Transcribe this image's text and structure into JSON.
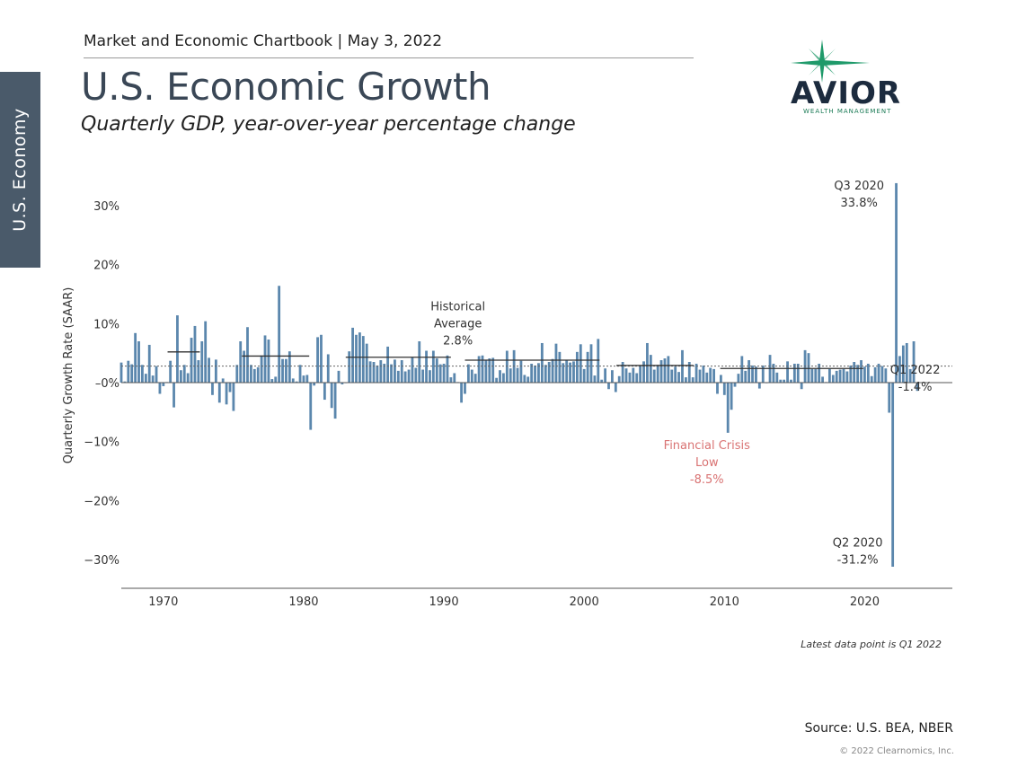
{
  "side_tab": "U.S. Economy",
  "header": "Market and Economic Chartbook | May 3, 2022",
  "title": "U.S. Economic Growth",
  "subtitle": "Quarterly GDP, year-over-year percentage change",
  "logo": {
    "word": "AVIOR",
    "sub": "WEALTH MANAGEMENT"
  },
  "source": "Source: U.S. BEA, NBER",
  "copyright": "© 2022 Clearnomics, Inc.",
  "colors": {
    "bar": "#5b87ad",
    "crisis": "#d97373",
    "ink": "#333333",
    "tab": "#4a5a6a",
    "logo_star": "#1f9a6a"
  },
  "chart_data": {
    "type": "bar",
    "ylabel": "Quarterly Growth Rate (SAAR)",
    "ylim": [
      -35,
      35
    ],
    "yticks": [
      {
        "v": 30,
        "label": "30%"
      },
      {
        "v": 20,
        "label": "20%"
      },
      {
        "v": 10,
        "label": "10%"
      },
      {
        "v": 0,
        "label": "–0%"
      },
      {
        "v": -10,
        "label": "−10%"
      },
      {
        "v": -20,
        "label": "−20%"
      },
      {
        "v": -30,
        "label": "−30%"
      }
    ],
    "xlim": [
      1967.0,
      2026.25
    ],
    "xticks": [
      {
        "v": 1970,
        "label": "1970"
      },
      {
        "v": 1980,
        "label": "1980"
      },
      {
        "v": 1990,
        "label": "1990"
      },
      {
        "v": 2000,
        "label": "2000"
      },
      {
        "v": 2010,
        "label": "2010"
      },
      {
        "v": 2020,
        "label": "2020"
      }
    ],
    "start": 1967.0,
    "step": 0.25,
    "values": [
      3.4,
      0.2,
      3.7,
      3.1,
      8.4,
      7.0,
      3.0,
      1.5,
      6.4,
      1.2,
      2.8,
      -1.9,
      -0.6,
      0.1,
      3.7,
      -4.2,
      11.4,
      2.1,
      3.0,
      1.6,
      7.6,
      9.6,
      3.8,
      7.0,
      10.4,
      4.2,
      -2.1,
      3.9,
      -3.4,
      0.7,
      -3.7,
      -1.6,
      -4.8,
      3.0,
      7.0,
      5.4,
      9.4,
      3.0,
      2.3,
      2.6,
      4.6,
      8.0,
      7.3,
      0.6,
      1.0,
      16.4,
      4.0,
      4.0,
      5.3,
      0.7,
      0.2,
      3.0,
      1.2,
      1.3,
      -8.0,
      -0.5,
      7.7,
      8.1,
      -2.9,
      4.8,
      -4.3,
      -6.1,
      2.0,
      -0.3,
      0.0,
      5.3,
      9.3,
      8.1,
      8.5,
      7.9,
      6.6,
      3.6,
      3.5,
      2.9,
      3.8,
      3.2,
      6.1,
      3.1,
      3.9,
      2.0,
      3.8,
      1.9,
      2.2,
      4.3,
      2.5,
      7.0,
      2.2,
      5.4,
      2.1,
      5.4,
      4.1,
      3.1,
      3.2,
      4.6,
      0.9,
      1.6,
      0.1,
      -3.4,
      -1.9,
      3.1,
      2.2,
      1.5,
      4.5,
      4.6,
      3.8,
      4.1,
      4.2,
      0.8,
      2.1,
      1.6,
      5.4,
      2.4,
      5.5,
      2.5,
      3.7,
      1.3,
      1.0,
      3.2,
      2.9,
      3.3,
      6.7,
      3.0,
      3.5,
      4.0,
      6.6,
      5.2,
      3.3,
      3.8,
      3.4,
      3.6,
      5.2,
      6.5,
      2.3,
      5.2,
      6.5,
      1.2,
      7.4,
      0.5,
      2.4,
      -1.1,
      2.1,
      -1.6,
      1.1,
      3.5,
      2.4,
      1.7,
      2.5,
      1.6,
      2.9,
      3.6,
      6.7,
      4.7,
      2.2,
      3.0,
      3.8,
      4.1,
      4.5,
      2.2,
      2.7,
      1.8,
      5.5,
      0.9,
      3.5,
      0.9,
      3.2,
      2.2,
      2.9,
      1.7,
      2.5,
      2.3,
      -1.9,
      1.3,
      -2.1,
      -8.5,
      -4.6,
      -0.7,
      1.5,
      4.5,
      2.0,
      3.8,
      2.9,
      2.7,
      -1.0,
      2.9,
      -0.1,
      4.7,
      3.2,
      1.7,
      0.5,
      0.5,
      3.6,
      0.5,
      3.2,
      3.2,
      -1.1,
      5.5,
      5.0,
      2.3,
      2.3,
      3.2,
      1.0,
      0.1,
      2.3,
      1.3,
      2.0,
      2.2,
      2.3,
      1.9,
      2.9,
      3.5,
      3.0,
      3.8,
      2.7,
      3.2,
      1.1,
      2.6,
      3.2,
      2.8,
      2.4,
      -5.1,
      -31.2,
      33.8,
      4.5,
      6.3,
      6.7,
      2.3,
      7.0,
      -1.4
    ],
    "avg": 2.8,
    "decade_avgs": [
      {
        "x0": 1970.3,
        "x1": 1972.6,
        "v": 5.2
      },
      {
        "x0": 1975.6,
        "x1": 1980.4,
        "v": 4.5
      },
      {
        "x0": 1983.0,
        "x1": 1990.5,
        "v": 4.3
      },
      {
        "x0": 1991.5,
        "x1": 2001.1,
        "v": 3.8
      },
      {
        "x0": 2002.3,
        "x1": 2007.8,
        "v": 2.9
      },
      {
        "x0": 2009.7,
        "x1": 2019.9,
        "v": 2.4
      }
    ],
    "annotations": [
      {
        "id": "historical-average",
        "lines": [
          "Historical",
          "Average",
          "2.8%"
        ],
        "x": 1991.0,
        "y": 13.0
      },
      {
        "id": "financial-crisis",
        "lines": [
          "Financial Crisis",
          "Low",
          "-8.5%"
        ],
        "x": 2008.75,
        "y": -10.5
      },
      {
        "id": "q3-2020",
        "lines": [
          "Q3 2020",
          "33.8%"
        ],
        "x": 2019.6,
        "y": 33.5
      },
      {
        "id": "q2-2020",
        "lines": [
          "Q2 2020",
          "-31.2%"
        ],
        "x": 2019.5,
        "y": -27.0
      },
      {
        "id": "q1-2022",
        "lines": [
          "Q1 2022",
          "-1.4%"
        ],
        "x": 2023.6,
        "y": 2.3
      }
    ],
    "footnote": "Latest data point is Q1 2022"
  }
}
